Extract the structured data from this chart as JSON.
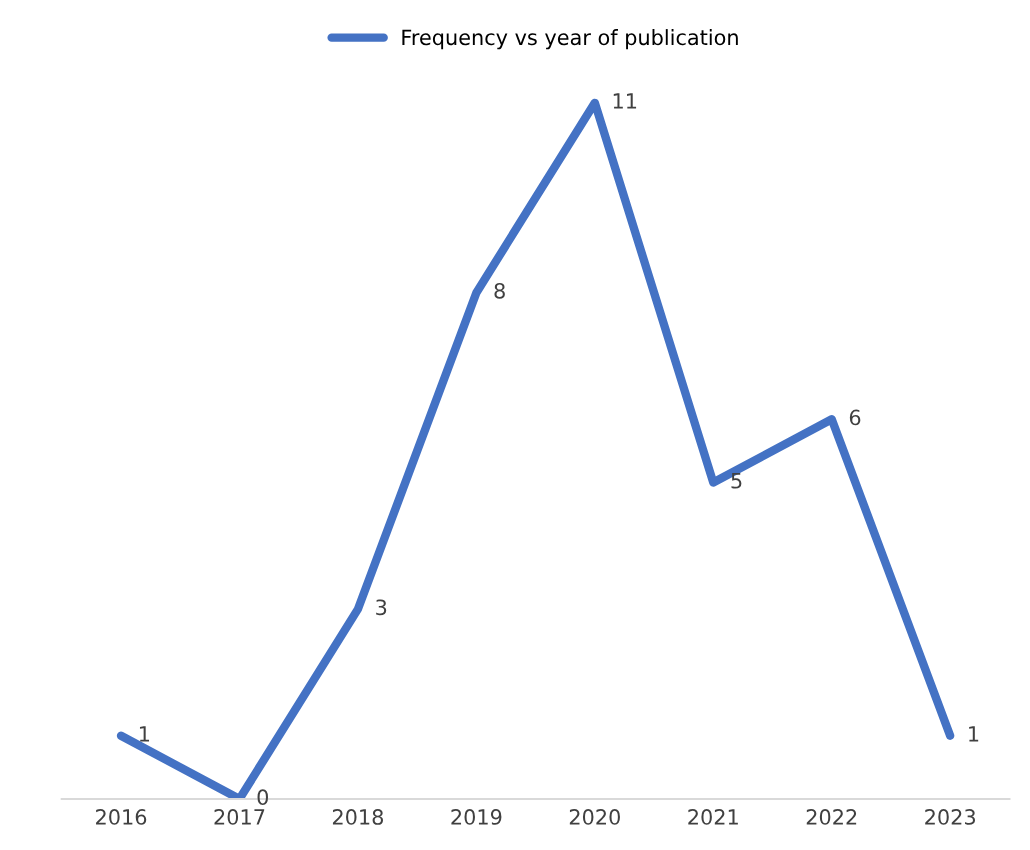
{
  "chart_data": {
    "type": "line",
    "categories": [
      "2016",
      "2017",
      "2018",
      "2019",
      "2020",
      "2021",
      "2022",
      "2023"
    ],
    "series": [
      {
        "name": "Frequency vs year of publication",
        "color": "#4472c4",
        "values": [
          1,
          0,
          3,
          8,
          11,
          5,
          6,
          1
        ]
      }
    ],
    "data_labels": true,
    "legend": "top",
    "grid": false,
    "marker": "none",
    "line_style": "solid"
  }
}
